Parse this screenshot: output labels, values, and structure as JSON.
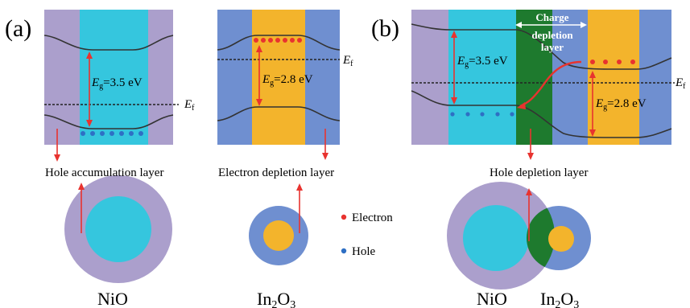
{
  "panel_a": {
    "label": "(a)",
    "nio_band": {
      "eg_symbol": "E",
      "eg_sub": "g",
      "eg_value": "=3.5 eV",
      "ef_symbol": "E",
      "ef_sub": "f"
    },
    "in2o3_band": {
      "eg_symbol": "E",
      "eg_sub": "g",
      "eg_value": "=2.8 eV",
      "ef_symbol": "E",
      "ef_sub": "f"
    },
    "nio_caption": "Hole accumulation layer",
    "in2o3_caption": "Electron depletion layer",
    "nio_name": "NiO",
    "in2o3_name_main": "In",
    "in2o3_name_sub1": "2",
    "in2o3_name_o": "O",
    "in2o3_name_sub2": "3"
  },
  "panel_b": {
    "label": "(b)",
    "charge_label_line1": "Charge",
    "charge_label_line2": "depletion",
    "charge_label_line3": "layer",
    "left_eg": {
      "eg_symbol": "E",
      "eg_sub": "g",
      "eg_value": "=3.5 eV"
    },
    "right_eg": {
      "eg_symbol": "E",
      "eg_sub": "g",
      "eg_value": "=2.8 eV"
    },
    "ef_symbol": "E",
    "ef_sub": "f",
    "caption": "Hole depletion layer",
    "nio_name": "NiO",
    "in2o3_name_main": "In",
    "in2o3_name_sub1": "2",
    "in2o3_name_o": "O",
    "in2o3_name_sub2": "3"
  },
  "legend": {
    "electron": "Electron",
    "hole": "Hole"
  },
  "colors": {
    "purple": "#ab9fcc",
    "cyan": "#35c6de",
    "blue": "#6f8fd0",
    "orange": "#f3b42c",
    "green": "#1e7a2e",
    "red": "#e8332f",
    "hole": "#2e6fc4"
  }
}
